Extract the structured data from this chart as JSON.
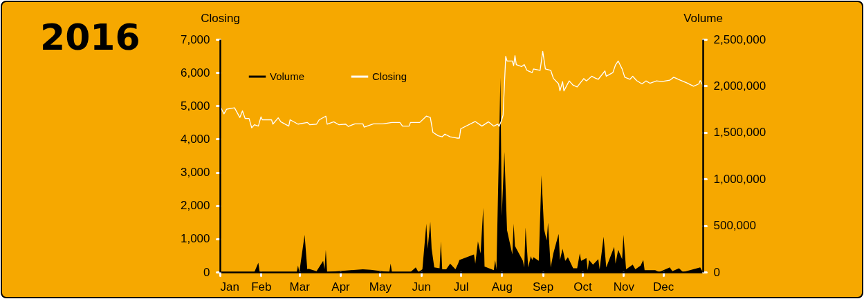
{
  "chart_data": {
    "type": "line",
    "title": "2016",
    "ylabel": "Closing",
    "y2label": "Volume",
    "legend": "top left",
    "xlim": [
      "2016-01-01",
      "2016-12-31"
    ],
    "xticks": [
      {
        "value": "2016-01-01",
        "label": "Jan"
      },
      {
        "value": "2016-02-01",
        "label": "Feb"
      },
      {
        "value": "2016-03-01",
        "label": "Mar"
      },
      {
        "value": "2016-04-01",
        "label": "Apr"
      },
      {
        "value": "2016-05-01",
        "label": "May"
      },
      {
        "value": "2016-06-01",
        "label": "Jun"
      },
      {
        "value": "2016-07-01",
        "label": "Jul"
      },
      {
        "value": "2016-08-01",
        "label": "Aug"
      },
      {
        "value": "2016-09-01",
        "label": "Sep"
      },
      {
        "value": "2016-10-01",
        "label": "Oct"
      },
      {
        "value": "2016-11-01",
        "label": "Nov"
      },
      {
        "value": "2016-12-01",
        "label": "Dec"
      }
    ],
    "ylim": [
      0,
      7000
    ],
    "yticks": [
      0,
      {
        "value": 1000,
        "label": "1,000"
      },
      {
        "value": 2000,
        "label": "2,000"
      },
      {
        "value": 3000,
        "label": "3,000"
      },
      {
        "value": 4000,
        "label": "4,000"
      },
      {
        "value": 5000,
        "label": "5,000"
      },
      {
        "value": 6000,
        "label": "6,000"
      },
      {
        "value": 7000,
        "label": "7,000"
      }
    ],
    "y2lim": [
      0,
      2500000
    ],
    "y2ticks": [
      0,
      {
        "value": 500000,
        "label": "500,000"
      },
      {
        "value": 1000000,
        "label": "1,000,000"
      },
      {
        "value": 1500000,
        "label": "1,500,000"
      },
      {
        "value": 2000000,
        "label": "2,000,000"
      },
      {
        "value": 2500000,
        "label": "2,500,000"
      }
    ],
    "series": [
      {
        "name": "Volume",
        "type": "area",
        "axis": "y2",
        "color": "#000000",
        "x": [
          "2016-01-01",
          "2016-01-27",
          "2016-01-30",
          "2016-01-31",
          "2016-02-28",
          "2016-02-29",
          "2016-03-01",
          "2016-03-05",
          "2016-03-07",
          "2016-03-08",
          "2016-03-14",
          "2016-03-19",
          "2016-03-20",
          "2016-03-21",
          "2016-03-22",
          "2016-04-18",
          "2016-04-24",
          "2016-05-08",
          "2016-05-09",
          "2016-05-10",
          "2016-05-24",
          "2016-05-28",
          "2016-05-30",
          "2016-06-02",
          "2016-06-05",
          "2016-06-06",
          "2016-06-08",
          "2016-06-09",
          "2016-06-11",
          "2016-06-15",
          "2016-06-16",
          "2016-06-17",
          "2016-06-20",
          "2016-06-23",
          "2016-06-27",
          "2016-06-29",
          "2016-06-30",
          "2016-07-11",
          "2016-07-12",
          "2016-07-14",
          "2016-07-16",
          "2016-07-18",
          "2016-07-19",
          "2016-07-26",
          "2016-07-27",
          "2016-07-28",
          "2016-07-31",
          "2016-08-01",
          "2016-08-03",
          "2016-08-05",
          "2016-08-09",
          "2016-08-10",
          "2016-08-11",
          "2016-08-17",
          "2016-08-18",
          "2016-08-19",
          "2016-08-21",
          "2016-08-23",
          "2016-08-24",
          "2016-08-25",
          "2016-08-29",
          "2016-08-31",
          "2016-09-02",
          "2016-09-04",
          "2016-09-05",
          "2016-09-07",
          "2016-09-09",
          "2016-09-13",
          "2016-09-14",
          "2016-09-16",
          "2016-09-18",
          "2016-09-20",
          "2016-09-24",
          "2016-09-27",
          "2016-09-29",
          "2016-09-30",
          "2016-10-04",
          "2016-10-05",
          "2016-10-06",
          "2016-10-09",
          "2016-10-13",
          "2016-10-14",
          "2016-10-17",
          "2016-10-19",
          "2016-10-25",
          "2016-10-26",
          "2016-10-28",
          "2016-10-31",
          "2016-11-01",
          "2016-11-03",
          "2016-11-08",
          "2016-11-10",
          "2016-11-14",
          "2016-11-16",
          "2016-11-17",
          "2016-11-25",
          "2016-11-28",
          "2016-12-06",
          "2016-12-08",
          "2016-12-13",
          "2016-12-16",
          "2016-12-29",
          "2016-12-31"
        ],
        "values": [
          0,
          0,
          100000,
          0,
          0,
          70000,
          0,
          400000,
          30000,
          35000,
          10000,
          120000,
          30000,
          240000,
          0,
          30000,
          25000,
          0,
          90000,
          0,
          0,
          50000,
          0,
          30000,
          520000,
          250000,
          540000,
          250000,
          50000,
          40000,
          330000,
          30000,
          30000,
          90000,
          30000,
          90000,
          130000,
          190000,
          90000,
          330000,
          200000,
          690000,
          60000,
          20000,
          130000,
          30000,
          2090000,
          600000,
          1290000,
          450000,
          190000,
          520000,
          280000,
          120000,
          50000,
          480000,
          50000,
          170000,
          130000,
          160000,
          120000,
          1040000,
          460000,
          340000,
          530000,
          50000,
          200000,
          410000,
          130000,
          250000,
          120000,
          160000,
          40000,
          40000,
          200000,
          120000,
          150000,
          20000,
          130000,
          80000,
          140000,
          30000,
          380000,
          50000,
          270000,
          90000,
          240000,
          140000,
          400000,
          30000,
          80000,
          30000,
          70000,
          130000,
          20000,
          20000,
          0,
          50000,
          10000,
          40000,
          0,
          50000,
          0
        ]
      },
      {
        "name": "Closing",
        "color": "#ffffff",
        "x": [
          "2016-01-01",
          "2016-01-04",
          "2016-01-06",
          "2016-01-12",
          "2016-01-16",
          "2016-01-18",
          "2016-01-20",
          "2016-01-23",
          "2016-01-25",
          "2016-01-27",
          "2016-01-30",
          "2016-02-01",
          "2016-02-02",
          "2016-02-09",
          "2016-02-10",
          "2016-02-14",
          "2016-02-16",
          "2016-02-22",
          "2016-02-23",
          "2016-02-29",
          "2016-03-07",
          "2016-03-09",
          "2016-03-14",
          "2016-03-16",
          "2016-03-21",
          "2016-03-22",
          "2016-03-27",
          "2016-03-31",
          "2016-04-05",
          "2016-04-07",
          "2016-04-12",
          "2016-04-18",
          "2016-04-19",
          "2016-04-26",
          "2016-05-03",
          "2016-05-10",
          "2016-05-16",
          "2016-05-18",
          "2016-05-23",
          "2016-05-24",
          "2016-05-31",
          "2016-06-05",
          "2016-06-08",
          "2016-06-10",
          "2016-06-14",
          "2016-06-17",
          "2016-06-19",
          "2016-06-23",
          "2016-06-28",
          "2016-06-30",
          "2016-07-01",
          "2016-07-12",
          "2016-07-17",
          "2016-07-22",
          "2016-07-26",
          "2016-07-29",
          "2016-07-30",
          "2016-08-01",
          "2016-08-02",
          "2016-08-04",
          "2016-08-05",
          "2016-08-09",
          "2016-08-10",
          "2016-08-11",
          "2016-08-12",
          "2016-08-16",
          "2016-08-18",
          "2016-08-20",
          "2016-08-24",
          "2016-08-25",
          "2016-08-30",
          "2016-09-01",
          "2016-09-03",
          "2016-09-07",
          "2016-09-09",
          "2016-09-13",
          "2016-09-14",
          "2016-09-16",
          "2016-09-17",
          "2016-09-21",
          "2016-09-24",
          "2016-09-27",
          "2016-10-02",
          "2016-10-04",
          "2016-10-08",
          "2016-10-11",
          "2016-10-13",
          "2016-10-18",
          "2016-10-19",
          "2016-10-24",
          "2016-10-26",
          "2016-10-28",
          "2016-10-31",
          "2016-11-02",
          "2016-11-06",
          "2016-11-08",
          "2016-11-11",
          "2016-11-15",
          "2016-11-18",
          "2016-11-21",
          "2016-11-26",
          "2016-11-30",
          "2016-12-06",
          "2016-12-09",
          "2016-12-14",
          "2016-12-19",
          "2016-12-24",
          "2016-12-28",
          "2016-12-29",
          "2016-12-31"
        ],
        "values": [
          5000,
          4760,
          4900,
          4940,
          4650,
          4850,
          4620,
          4620,
          4340,
          4430,
          4390,
          4670,
          4580,
          4580,
          4450,
          4640,
          4520,
          4390,
          4580,
          4450,
          4500,
          4430,
          4450,
          4580,
          4690,
          4450,
          4520,
          4430,
          4450,
          4380,
          4460,
          4460,
          4360,
          4460,
          4460,
          4500,
          4500,
          4390,
          4390,
          4500,
          4500,
          4690,
          4650,
          4200,
          4100,
          4070,
          4150,
          4070,
          4030,
          4030,
          4310,
          4530,
          4390,
          4520,
          4390,
          4450,
          4380,
          4580,
          4720,
          6490,
          6350,
          6350,
          6210,
          6510,
          6240,
          6180,
          6240,
          6070,
          6000,
          6110,
          6070,
          6640,
          6110,
          6070,
          5830,
          5660,
          5450,
          5730,
          5450,
          5750,
          5620,
          5570,
          5820,
          5750,
          5890,
          5830,
          5800,
          6050,
          5890,
          6000,
          6230,
          6350,
          6110,
          5860,
          5800,
          5890,
          5760,
          5660,
          5750,
          5680,
          5750,
          5730,
          5770,
          5860,
          5770,
          5690,
          5590,
          5660,
          5760,
          5620
        ]
      }
    ]
  }
}
